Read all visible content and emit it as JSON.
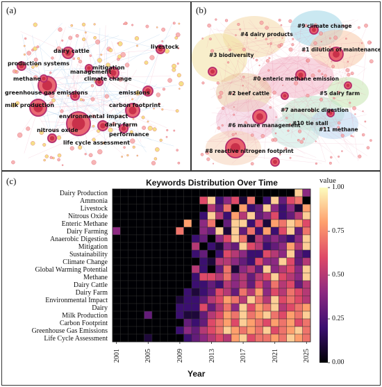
{
  "panels": {
    "a": {
      "label": "(a)",
      "keywords": [
        "livestock",
        "dairy cattle",
        "production systems",
        "mitigation",
        "methane",
        "management",
        "climate change",
        "greenhouse gas emissions",
        "emissions",
        "milk production",
        "carbon footprint",
        "environmental impact",
        "dairy farm",
        "nitrous oxide",
        "performance",
        "life cycle assessment"
      ]
    },
    "b": {
      "label": "(b)",
      "clusters": [
        "#9 climate change",
        "#4 dairy products",
        "#1 dilution of maintenance",
        "#3 biodiversity",
        "#0 enteric methane emission",
        "#2 beef cattle",
        "#5 dairy farm",
        "#7 anaerobic digestion",
        "#6 manure management",
        "#11 methane",
        "#10 tie stall",
        "#8 reactive nitrogen footprint"
      ]
    },
    "c": {
      "label": "(c)"
    }
  },
  "chart_data": {
    "type": "heatmap",
    "title": "Keywords Distribution Over Time",
    "xlabel": "Year",
    "legend_title": "value",
    "colorbar_ticks": [
      "1.00",
      "0.75",
      "0.50",
      "0.25",
      "0.00"
    ],
    "color_scale": [
      "#000004",
      "#3b0f70",
      "#8c2981",
      "#de4968",
      "#fe9f6d",
      "#fcfdbf"
    ],
    "years": [
      2001,
      2002,
      2003,
      2004,
      2005,
      2006,
      2007,
      2008,
      2009,
      2010,
      2011,
      2012,
      2013,
      2014,
      2015,
      2016,
      2017,
      2018,
      2019,
      2020,
      2021,
      2022,
      2023,
      2024,
      2025
    ],
    "year_tick_labels": [
      "2001",
      "2005",
      "2009",
      "2013",
      "2017",
      "2021",
      "2025"
    ],
    "keywords": [
      "Dairy Production",
      "Ammonia",
      "Livestock",
      "Nitrous Oxide",
      "Enteric Methane",
      "Dairy Farming",
      "Anaerobic Digestion",
      "Mitigation",
      "Sustainability",
      "Climate Change",
      "Global Warming Potential",
      "Methane",
      "Dairy Cattle",
      "Dairy Farm",
      "Environmental Impact",
      "Dairy",
      "Milk Production",
      "Carbon Footprint",
      "Greenhouse Gas Emissions",
      "Life Cycle Assessment"
    ],
    "values": [
      [
        0,
        0,
        0,
        0,
        0,
        0,
        0,
        0,
        0,
        0,
        0,
        0,
        0,
        0,
        0,
        0,
        0,
        0,
        0,
        0,
        0,
        0,
        0,
        0.9,
        0.4
      ],
      [
        0,
        0,
        0,
        0,
        0,
        0,
        0,
        0,
        0,
        0,
        0,
        0.6,
        0.9,
        0.2,
        0.4,
        0.6,
        0.1,
        0.7,
        0,
        0.2,
        0.9,
        0.3,
        0.6,
        0.7,
        0
      ],
      [
        0,
        0,
        0,
        0,
        0,
        0,
        0,
        0,
        0,
        0,
        0,
        0,
        0.5,
        0.3,
        0.7,
        0,
        0.8,
        0.2,
        0.3,
        0.9,
        0.4,
        0.2,
        0.4,
        0.1,
        0.8
      ],
      [
        0,
        0,
        0,
        0,
        0,
        0,
        0,
        0,
        0,
        0,
        0,
        0.2,
        0.9,
        0.5,
        0.2,
        0.8,
        0.5,
        0.9,
        0.3,
        0.4,
        0.6,
        0.2,
        0.3,
        0.5,
        0.9
      ],
      [
        0,
        0,
        0,
        0,
        0,
        0,
        0,
        0,
        0,
        0.8,
        0,
        0.4,
        0.7,
        0,
        0.3,
        0.9,
        0.9,
        0.2,
        0.6,
        0.1,
        0.8,
        0.7,
        0.9,
        0.8,
        0.6
      ],
      [
        0.4,
        0,
        0,
        0,
        0,
        0,
        0,
        0,
        0.7,
        0,
        0,
        0.4,
        0.3,
        0.9,
        0.1,
        0.9,
        0.3,
        0.7,
        0.2,
        0.8,
        0.2,
        0.6,
        0.9,
        0.3,
        0.7
      ],
      [
        0,
        0,
        0,
        0,
        0,
        0,
        0,
        0,
        0,
        0,
        0.2,
        0.3,
        0,
        0.4,
        0.6,
        0.9,
        0.7,
        0.1,
        0.5,
        0.3,
        0.4,
        0.3,
        0.2,
        0.4,
        0.9
      ],
      [
        0,
        0,
        0,
        0,
        0,
        0,
        0,
        0,
        0,
        0,
        0.5,
        0,
        0.2,
        0.1,
        0.4,
        0.3,
        0.9,
        0.6,
        0.5,
        0.2,
        0.3,
        0.4,
        0.8,
        0.5,
        0.9
      ],
      [
        0,
        0,
        0,
        0,
        0,
        0,
        0,
        0,
        0,
        0,
        0.2,
        0.3,
        0,
        0.2,
        0.6,
        0.5,
        0.4,
        0.2,
        0.2,
        0.6,
        0.5,
        0.4,
        0.9,
        0.3,
        0.2
      ],
      [
        0,
        0,
        0,
        0,
        0,
        0,
        0,
        0,
        0,
        0,
        0,
        0.2,
        0.1,
        0.5,
        0.5,
        0.4,
        0.3,
        0.2,
        0.6,
        0.4,
        0.4,
        0.9,
        0.6,
        0.3,
        0.5
      ],
      [
        0,
        0,
        0,
        0,
        0,
        0,
        0,
        0,
        0,
        0,
        0.5,
        0.2,
        0,
        0.3,
        0.7,
        0.1,
        0.4,
        0.5,
        0.3,
        0.9,
        0.4,
        0.5,
        0.6,
        0.4,
        0.9
      ],
      [
        0,
        0,
        0,
        0,
        0,
        0,
        0,
        0,
        0,
        0,
        0.2,
        0.6,
        0.6,
        0.5,
        0.7,
        0.4,
        0.5,
        0.3,
        0.5,
        0.6,
        0.9,
        0.6,
        0.5,
        0.4,
        0.9
      ],
      [
        0,
        0,
        0,
        0,
        0,
        0,
        0,
        0,
        0,
        0,
        0.2,
        0.2,
        0.3,
        0.2,
        0.5,
        0.4,
        0.5,
        0.3,
        0.6,
        0.4,
        0.7,
        0.5,
        0.6,
        0.3,
        0.5
      ],
      [
        0,
        0,
        0,
        0,
        0,
        0,
        0,
        0,
        0,
        0.2,
        0.1,
        0.2,
        0.3,
        0.6,
        0.5,
        0.3,
        0.7,
        0.5,
        0.8,
        0.4,
        0.6,
        0.5,
        0.7,
        0.6,
        0.5
      ],
      [
        0,
        0,
        0,
        0,
        0,
        0,
        0,
        0,
        0.1,
        0.2,
        0.2,
        0.3,
        0.5,
        0.6,
        0.8,
        0.7,
        0.5,
        0.9,
        0.7,
        0.5,
        0.9,
        0.6,
        0.7,
        0.6,
        0.5
      ],
      [
        0,
        0,
        0,
        0,
        0,
        0,
        0,
        0,
        0.2,
        0.2,
        0.2,
        0.6,
        0.3,
        0.5,
        0.7,
        0.4,
        0.9,
        0.6,
        0.8,
        0.7,
        0.9,
        0.5,
        0.6,
        0.7,
        0.8
      ],
      [
        0,
        0,
        0,
        0,
        0.3,
        0,
        0,
        0,
        0.2,
        0.1,
        0.1,
        0.3,
        0.5,
        0.6,
        0.8,
        0.7,
        0.9,
        0.7,
        0.8,
        0.9,
        0.7,
        0.6,
        0.8,
        0.7,
        0.9
      ],
      [
        0,
        0,
        0,
        0,
        0,
        0,
        0,
        0,
        0,
        0.3,
        0.2,
        0.3,
        0.6,
        0.7,
        0.8,
        0.6,
        0.9,
        0.8,
        0.7,
        0.6,
        0.8,
        0.7,
        0.8,
        0.6,
        0.7
      ],
      [
        0,
        0,
        0,
        0,
        0,
        0,
        0,
        0,
        0.2,
        0.4,
        0.3,
        0.5,
        0.6,
        0.7,
        0.9,
        0.8,
        0.7,
        0.8,
        0.7,
        0.9,
        0.6,
        0.7,
        0.8,
        0.9,
        0.7
      ],
      [
        0,
        0,
        0,
        0,
        0.1,
        0,
        0,
        0,
        0,
        0.2,
        0.3,
        0.4,
        0.5,
        0.6,
        0.5,
        0.8,
        0.9,
        0.6,
        0.7,
        0.7,
        0.8,
        0.7,
        0.9,
        0.8,
        0.7
      ]
    ]
  }
}
